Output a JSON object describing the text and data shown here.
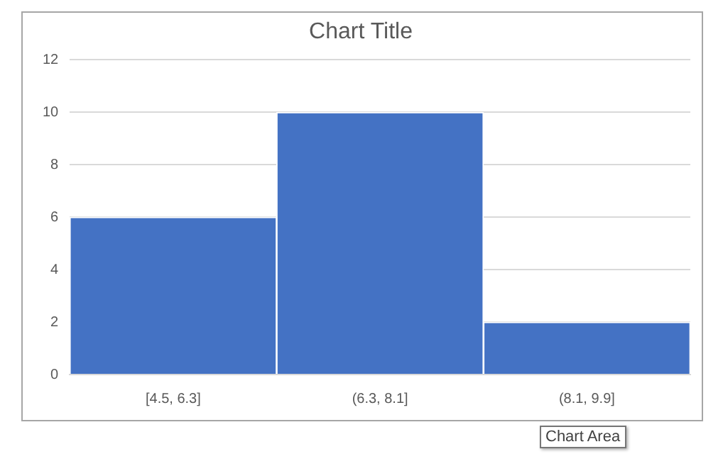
{
  "chart_data": {
    "type": "bar",
    "title": "Chart Title",
    "categories": [
      "[4.5, 6.3]",
      "(6.3, 8.1]",
      "(8.1, 9.9]"
    ],
    "values": [
      6,
      10,
      2
    ],
    "color": "#4472c4",
    "ylim": [
      0,
      12
    ],
    "yticks": [
      0,
      2,
      4,
      6,
      8,
      10,
      12
    ],
    "grid": "y",
    "annotations": [
      "Chart Area"
    ]
  }
}
